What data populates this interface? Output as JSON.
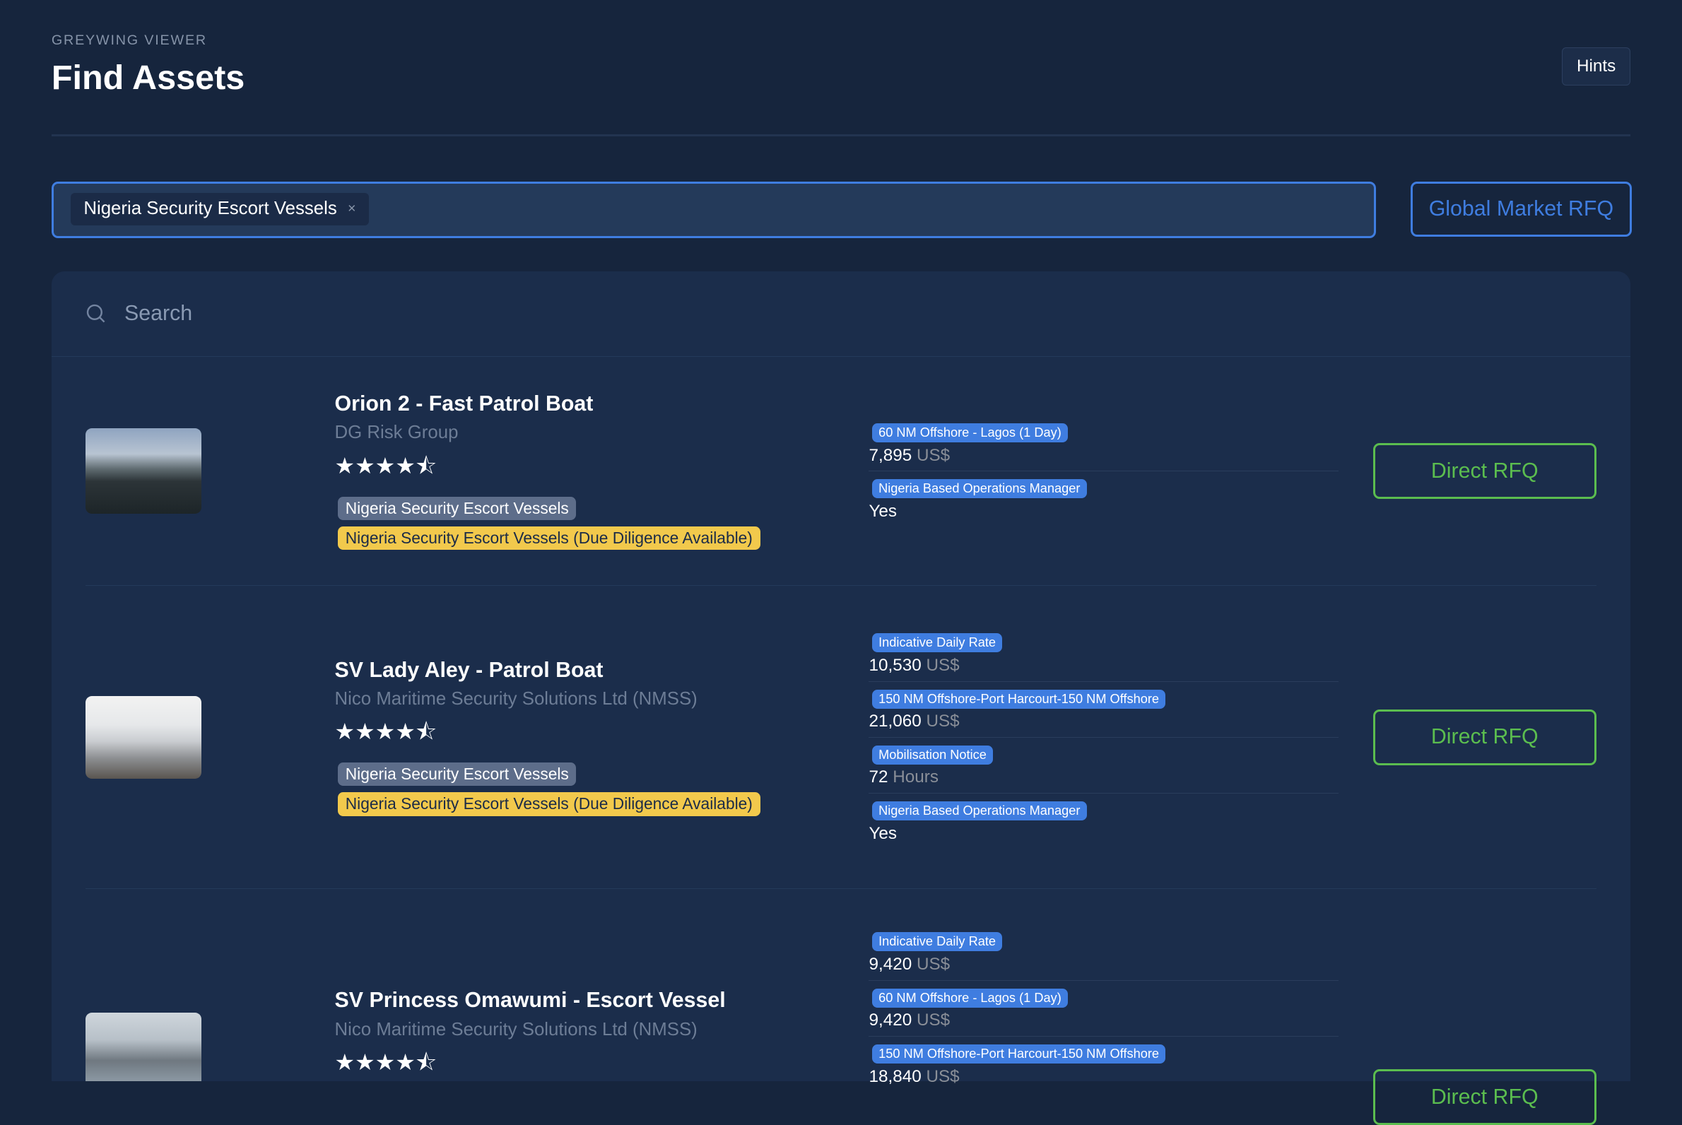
{
  "header": {
    "brand": "GREYWING VIEWER",
    "title": "Find Assets",
    "hints_label": "Hints"
  },
  "filter": {
    "chip": "Nigeria Security Escort Vessels",
    "chip_remove": "×",
    "global_rfq_label": "Global Market RFQ"
  },
  "search": {
    "placeholder": "Search"
  },
  "colors": {
    "accent": "#3f7de0",
    "rfq_green": "#5bbd4f",
    "due_diligence": "#f2c94c"
  },
  "assets": [
    {
      "name": "Orion 2 - Fast Patrol Boat",
      "company": "DG Risk Group",
      "rating": 4.5,
      "stars": "★★★★⯪",
      "tags": [
        "Nigeria Security Escort Vessels",
        "Nigeria Security Escort Vessels (Due Diligence Available)"
      ],
      "attributes": [
        {
          "label": "60 NM Offshore - Lagos (1 Day)",
          "value": "7,895",
          "unit": "US$"
        },
        {
          "label": "Nigeria Based Operations Manager",
          "value": "Yes",
          "unit": ""
        }
      ],
      "rfq_label": "Direct RFQ"
    },
    {
      "name": "SV Lady Aley - Patrol Boat",
      "company": "Nico Maritime Security Solutions Ltd (NMSS)",
      "rating": 4.5,
      "stars": "★★★★⯪",
      "tags": [
        "Nigeria Security Escort Vessels",
        "Nigeria Security Escort Vessels (Due Diligence Available)"
      ],
      "attributes": [
        {
          "label": "Indicative Daily Rate",
          "value": "10,530",
          "unit": "US$"
        },
        {
          "label": "150 NM Offshore-Port Harcourt-150 NM Offshore",
          "value": "21,060",
          "unit": "US$"
        },
        {
          "label": "Mobilisation Notice",
          "value": "72",
          "unit": "Hours"
        },
        {
          "label": "Nigeria Based Operations Manager",
          "value": "Yes",
          "unit": ""
        }
      ],
      "rfq_label": "Direct RFQ"
    },
    {
      "name": "SV Princess Omawumi - Escort Vessel",
      "company": "Nico Maritime Security Solutions Ltd (NMSS)",
      "rating": 4.5,
      "stars": "★★★★⯪",
      "attributes": [
        {
          "label": "Indicative Daily Rate",
          "value": "9,420",
          "unit": "US$"
        },
        {
          "label": "60 NM Offshore - Lagos (1 Day)",
          "value": "9,420",
          "unit": "US$"
        },
        {
          "label": "150 NM Offshore-Port Harcourt-150 NM Offshore",
          "value": "18,840",
          "unit": "US$"
        }
      ],
      "rfq_label": "Direct RFQ"
    }
  ]
}
